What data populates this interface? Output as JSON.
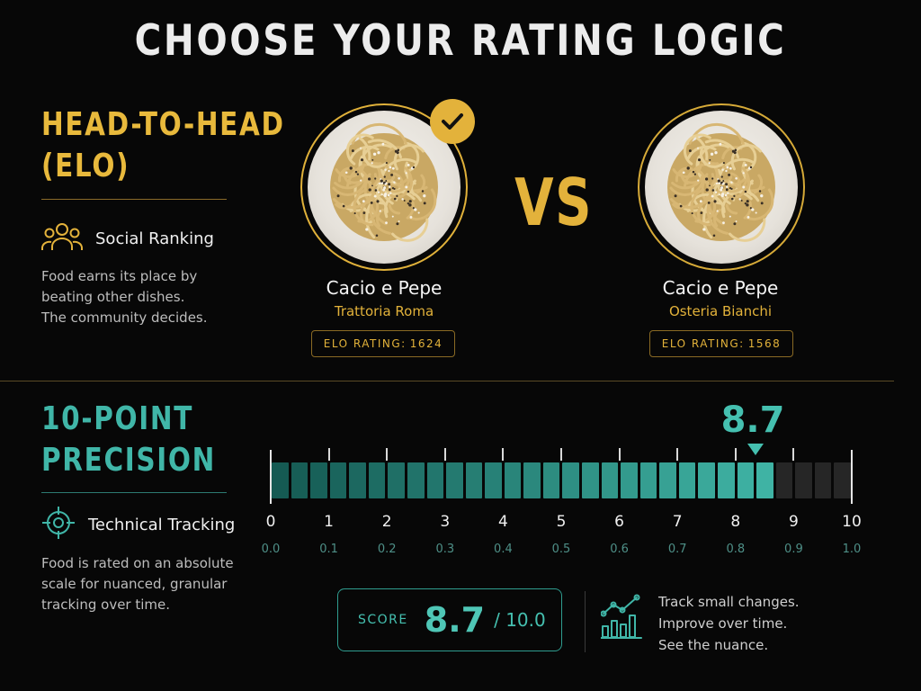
{
  "title": "CHOOSE YOUR RATING LOGIC",
  "elo": {
    "title_line1": "HEAD-TO-HEAD",
    "title_line2": "(ELO)",
    "feature_icon": "users-icon",
    "feature_label": "Social Ranking",
    "description": [
      "Food earns its place by",
      "beating other dishes.",
      "The community decides."
    ]
  },
  "matchup": {
    "vs_label": "VS",
    "selected_icon": "checkmark-icon",
    "dishes": [
      {
        "name": "Cacio e Pepe",
        "place": "Trattoria Roma",
        "rating_label": "ELO RATING:",
        "rating": "1624"
      },
      {
        "name": "Cacio e Pepe",
        "place": "Osteria Bianchi",
        "rating_label": "ELO RATING:",
        "rating": "1568"
      }
    ]
  },
  "precision": {
    "title_line1": "10-POINT",
    "title_line2": "PRECISION",
    "feature_icon": "crosshair-icon",
    "feature_label": "Technical Tracking",
    "description": [
      "Food is rated on an absolute",
      "scale for nuanced, granular",
      "tracking over time."
    ]
  },
  "scale": {
    "current_score": 8.7,
    "current_score_label": "8.7",
    "min": 0,
    "max": 10,
    "segments": 30,
    "major_labels": [
      "0",
      "1",
      "2",
      "3",
      "4",
      "5",
      "6",
      "7",
      "8",
      "9",
      "10"
    ],
    "minor_labels": [
      "0.0",
      "0.1",
      "0.2",
      "0.3",
      "0.4",
      "0.5",
      "0.6",
      "0.7",
      "0.8",
      "0.9",
      "1.0"
    ],
    "fill_color_start": "#155a53",
    "fill_color_end": "#3fb3a4",
    "empty_color": "#262626"
  },
  "score_box": {
    "label": "SCORE",
    "value": "8.7",
    "out_of": "/ 10.0"
  },
  "tracking": {
    "icon": "chart-trend-icon",
    "lines": [
      "Track small changes.",
      "Improve over time.",
      "See the nuance."
    ]
  },
  "colors": {
    "gold": "#e3b23b",
    "teal": "#45c0b0",
    "background": "#070707"
  }
}
